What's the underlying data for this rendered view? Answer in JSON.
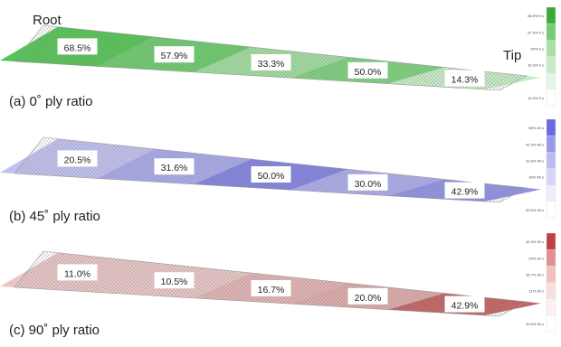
{
  "labels": {
    "root": "Root",
    "tip": "Tip"
  },
  "panels": [
    {
      "caption": "(a) 0˚ ply ratio",
      "color": "#2eb82e",
      "segments": [
        "68.5%",
        "57.9%",
        "33.3%",
        "50.0%",
        "14.3%"
      ],
      "values": [
        68.5,
        57.9,
        33.3,
        50.0,
        14.3
      ],
      "legend": {
        "colors": [
          "#3aaa3a",
          "#76cc76",
          "#a8e0a8",
          "#c8ecc8",
          "#e6f6e6",
          "#ffffff"
        ],
        "labels": [
          "68.5% 0 s",
          "57.9% 0 s",
          "50% 0 s",
          "33.3% 0 s",
          "",
          "14.3% 0 s"
        ]
      }
    },
    {
      "caption": "(b) 45˚ ply ratio",
      "color": "#6666dd",
      "segments": [
        "20.5%",
        "31.6%",
        "50.0%",
        "30.0%",
        "42.9%"
      ],
      "values": [
        20.5,
        31.6,
        50.0,
        30.0,
        42.9
      ],
      "legend": {
        "colors": [
          "#6a6ae0",
          "#9999ea",
          "#bbbbf2",
          "#d6d6f8",
          "#eeeefc",
          "#ffffff"
        ],
        "labels": [
          "50% 45 s",
          "42.9% 45 s",
          "31.6% 45 s",
          "30% 45 s",
          "",
          "20.5% 45 s"
        ]
      }
    },
    {
      "caption": "(c) 90˚ ply ratio",
      "color": "#b84040",
      "segments": [
        "11.0%",
        "10.5%",
        "16.7%",
        "20.0%",
        "42.9%"
      ],
      "values": [
        11.0,
        10.5,
        16.7,
        20.0,
        42.9
      ],
      "legend": {
        "colors": [
          "#c04040",
          "#e09090",
          "#f0c0c0",
          "#f8dede",
          "#fcf0f0",
          "#ffffff"
        ],
        "labels": [
          "42.9% 90 s",
          "20% 90 s",
          "16.7% 90 s",
          "11% 90 s",
          "",
          "10.5% 90 s"
        ]
      }
    }
  ]
}
